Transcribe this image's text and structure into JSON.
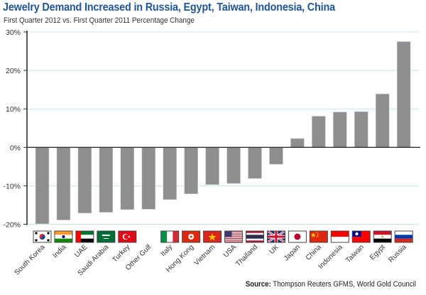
{
  "header": {
    "title": "Jewelry Demand Increased in Russia, Egypt, Taiwan, Indonesia, China",
    "subtitle": "First Quarter 2012 vs. First Quarter 2011 Percentage Change"
  },
  "footer": {
    "source_label": "Source:",
    "source_text": " Thompson Reuters GFMS, World Gold Council"
  },
  "colors": {
    "title": "#1f5597",
    "bar": "#8e8e91",
    "gridline": "#c5e6ee",
    "axis": "#000000"
  },
  "chart_data": {
    "type": "bar",
    "title": "Jewelry Demand Increased in Russia, Egypt, Taiwan, Indonesia, China",
    "subtitle": "First Quarter 2012 vs. First Quarter 2011 Percentage Change",
    "xlabel": "",
    "ylabel": "",
    "ylim": [
      -20,
      30
    ],
    "yticks": [
      -20,
      -10,
      0,
      10,
      20,
      30
    ],
    "ytick_labels": [
      "-20%",
      "-10%",
      "0%",
      "10%",
      "20%",
      "30%"
    ],
    "grid": true,
    "legend": "none",
    "categories": [
      "South Korea",
      "India",
      "UAE",
      "Saudi Arabia",
      "Turkey",
      "Other Gulf",
      "Italy",
      "Hong Kong",
      "Vietnam",
      "USA",
      "Thailand",
      "UK",
      "Japan",
      "China",
      "Indonesia",
      "Taiwan",
      "Egypt",
      "Russia"
    ],
    "values": [
      -19.9,
      -18.9,
      -17.1,
      -16.9,
      -16.2,
      -16.1,
      -13.6,
      -12.1,
      -9.7,
      -9.4,
      -8.1,
      -4.4,
      2.3,
      8.1,
      9.2,
      9.3,
      13.9,
      27.5
    ],
    "category_icons": [
      "flag-south-korea",
      "flag-india",
      "flag-uae",
      "flag-saudi-arabia",
      "flag-turkey",
      "none",
      "flag-italy",
      "flag-hong-kong",
      "flag-vietnam",
      "flag-usa",
      "flag-thailand",
      "flag-uk",
      "flag-japan",
      "flag-china",
      "flag-indonesia",
      "flag-taiwan",
      "flag-egypt",
      "flag-russia"
    ]
  }
}
